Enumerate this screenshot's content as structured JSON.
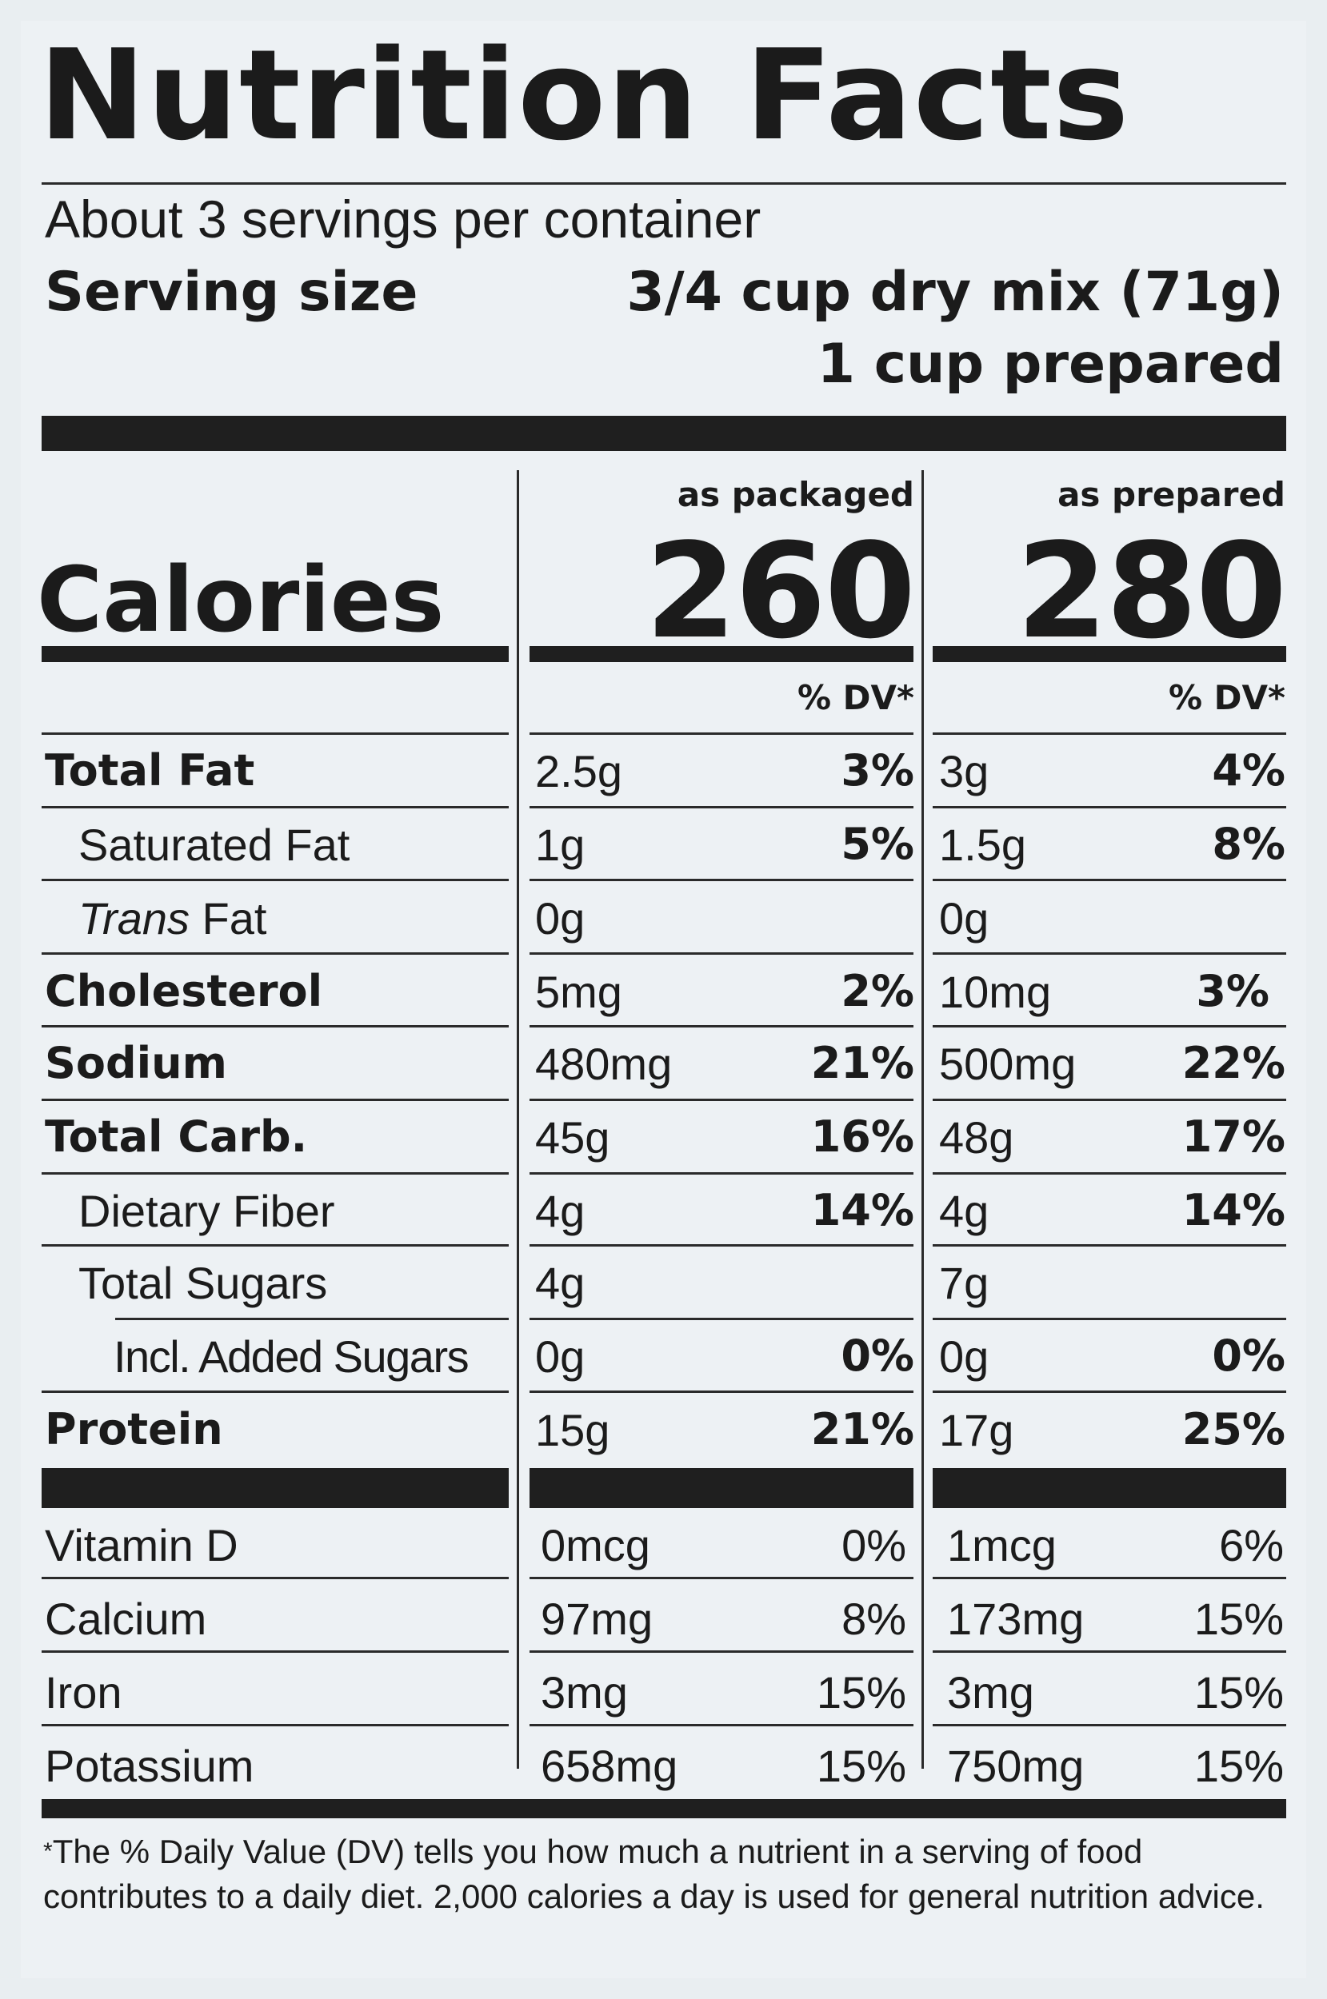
{
  "title": "Nutrition Facts",
  "servings_per_container": "About 3 servings per container",
  "serving_size_label": "Serving size",
  "serving_size_value": "3/4 cup dry mix (71g)",
  "serving_size_prepared": "1 cup prepared",
  "columns": {
    "packaged_label": "as packaged",
    "prepared_label": "as prepared",
    "dv_label": "% DV*"
  },
  "calories": {
    "label": "Calories",
    "packaged": "260",
    "prepared": "280"
  },
  "nutrients": [
    {
      "name": "Total Fat",
      "packaged_amount": "2.5g",
      "packaged_dv": "3%",
      "prepared_amount": "3g",
      "prepared_dv": "4%"
    },
    {
      "name": "Saturated Fat",
      "packaged_amount": "1g",
      "packaged_dv": "5%",
      "prepared_amount": "1.5g",
      "prepared_dv": "8%"
    },
    {
      "name_italic": "Trans",
      "name": " Fat",
      "packaged_amount": "0g",
      "packaged_dv": "",
      "prepared_amount": "0g",
      "prepared_dv": ""
    },
    {
      "name": "Cholesterol",
      "packaged_amount": "5mg",
      "packaged_dv": "2%",
      "prepared_amount": "10mg",
      "prepared_dv": "3%"
    },
    {
      "name": "Sodium",
      "packaged_amount": "480mg",
      "packaged_dv": "21%",
      "prepared_amount": "500mg",
      "prepared_dv": "22%"
    },
    {
      "name": "Total Carb.",
      "packaged_amount": "45g",
      "packaged_dv": "16%",
      "prepared_amount": "48g",
      "prepared_dv": "17%"
    },
    {
      "name": "Dietary Fiber",
      "packaged_amount": "4g",
      "packaged_dv": "14%",
      "prepared_amount": "4g",
      "prepared_dv": "14%"
    },
    {
      "name": "Total Sugars",
      "packaged_amount": "4g",
      "packaged_dv": "",
      "prepared_amount": "7g",
      "prepared_dv": ""
    },
    {
      "name": "Incl. Added Sugars",
      "packaged_amount": "0g",
      "packaged_dv": "0%",
      "prepared_amount": "0g",
      "prepared_dv": "0%"
    },
    {
      "name": "Protein",
      "packaged_amount": "15g",
      "packaged_dv": "21%",
      "prepared_amount": "17g",
      "prepared_dv": "25%"
    }
  ],
  "vitamins": [
    {
      "name": "Vitamin D",
      "packaged_amount": "0mcg",
      "packaged_dv": "0%",
      "prepared_amount": "1mcg",
      "prepared_dv": "6%"
    },
    {
      "name": "Calcium",
      "packaged_amount": "97mg",
      "packaged_dv": "8%",
      "prepared_amount": "173mg",
      "prepared_dv": "15%"
    },
    {
      "name": "Iron",
      "packaged_amount": "3mg",
      "packaged_dv": "15%",
      "prepared_amount": "3mg",
      "prepared_dv": "15%"
    },
    {
      "name": "Potassium",
      "packaged_amount": "658mg",
      "packaged_dv": "15%",
      "prepared_amount": "750mg",
      "prepared_dv": "15%"
    }
  ],
  "footnote_star": "*",
  "footnote": "The % Daily Value (DV) tells you how much a nutrient in a serving of food contributes to a daily diet. 2,000 calories a day is used for general nutrition advice."
}
